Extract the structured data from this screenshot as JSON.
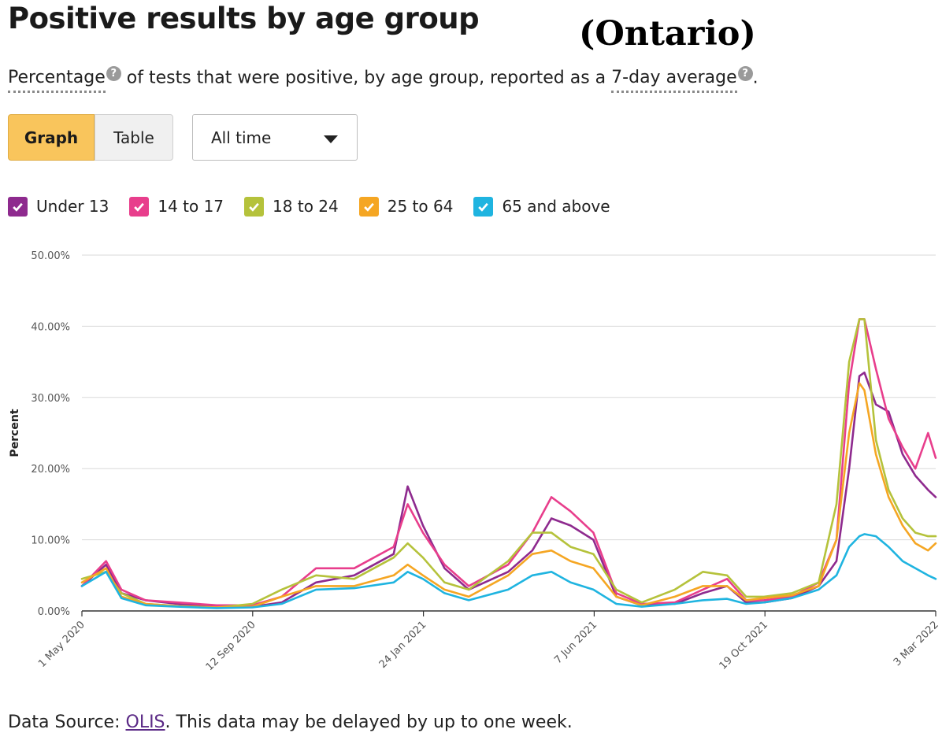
{
  "header": {
    "title": "Positive results by age group",
    "annotation": "(Ontario)"
  },
  "subtitle": {
    "term1": "Percentage",
    "middle": " of tests that were positive, by age group, reported as a ",
    "term2": "7-day average",
    "end": ".",
    "help_glyph": "?"
  },
  "controls": {
    "graph_label": "Graph",
    "table_label": "Table",
    "range_selected": "All time"
  },
  "legend": [
    {
      "label": "Under 13",
      "color": "#8e2a8e"
    },
    {
      "label": "14 to 17",
      "color": "#e83e8c"
    },
    {
      "label": "18 to 24",
      "color": "#b5c23b"
    },
    {
      "label": "25 to 64",
      "color": "#f5a623"
    },
    {
      "label": "65 and above",
      "color": "#1fb4e0"
    }
  ],
  "footer": {
    "prefix": "Data Source: ",
    "link": "OLIS",
    "suffix": ". This data may be delayed by up to one week."
  },
  "chart_data": {
    "type": "line",
    "ylabel": "Percent",
    "ylim": [
      0,
      50
    ],
    "yticks": [
      "0.00%",
      "10.00%",
      "20.00%",
      "30.00%",
      "40.00%",
      "50.00%"
    ],
    "xticks": [
      "1 May 2020",
      "12 Sep 2020",
      "24 Jan 2021",
      "7 Jun 2021",
      "19 Oct 2021",
      "3 Mar 2022"
    ],
    "x": [
      "2020-05-01",
      "2020-05-20",
      "2020-06-01",
      "2020-06-20",
      "2020-07-15",
      "2020-08-15",
      "2020-09-12",
      "2020-10-05",
      "2020-11-01",
      "2020-12-01",
      "2021-01-01",
      "2021-01-12",
      "2021-01-24",
      "2021-02-10",
      "2021-03-01",
      "2021-04-01",
      "2021-04-20",
      "2021-05-05",
      "2021-05-20",
      "2021-06-07",
      "2021-06-25",
      "2021-07-15",
      "2021-08-10",
      "2021-09-01",
      "2021-09-20",
      "2021-10-05",
      "2021-10-19",
      "2021-11-10",
      "2021-12-01",
      "2021-12-15",
      "2021-12-25",
      "2022-01-02",
      "2022-01-06",
      "2022-01-15",
      "2022-01-25",
      "2022-02-05",
      "2022-02-15",
      "2022-02-25",
      "2022-03-03"
    ],
    "series": [
      {
        "name": "Under 13",
        "color": "#8e2a8e",
        "values": [
          3.5,
          6.5,
          2.5,
          1.5,
          1.0,
          0.6,
          0.6,
          1.2,
          4.0,
          5.0,
          8.0,
          17.5,
          12.0,
          6.0,
          3.0,
          5.5,
          8.5,
          13.0,
          12.0,
          10.0,
          2.0,
          0.8,
          1.0,
          2.5,
          3.5,
          1.2,
          1.2,
          1.8,
          3.5,
          7.0,
          20.0,
          33.0,
          33.5,
          29.0,
          28.0,
          22.0,
          19.0,
          17.0,
          16.0
        ]
      },
      {
        "name": "14 to 17",
        "color": "#e83e8c",
        "values": [
          3.5,
          7.0,
          3.0,
          1.5,
          1.2,
          0.8,
          0.8,
          2.0,
          6.0,
          6.0,
          9.0,
          15.0,
          11.0,
          6.5,
          3.5,
          6.5,
          11.0,
          16.0,
          14.0,
          11.0,
          2.5,
          1.0,
          1.2,
          3.0,
          4.5,
          1.5,
          1.5,
          2.0,
          4.0,
          10.0,
          32.0,
          41.0,
          41.0,
          34.0,
          27.0,
          23.0,
          20.0,
          25.0,
          21.5
        ]
      },
      {
        "name": "18 to 24",
        "color": "#b5c23b",
        "values": [
          4.5,
          5.5,
          2.5,
          1.0,
          0.7,
          0.5,
          1.0,
          3.0,
          5.0,
          4.5,
          7.5,
          9.5,
          7.5,
          4.0,
          3.0,
          7.0,
          11.0,
          11.0,
          9.0,
          8.0,
          3.0,
          1.2,
          3.0,
          5.5,
          5.0,
          2.0,
          2.0,
          2.5,
          4.0,
          15.0,
          35.0,
          41.0,
          41.0,
          24.0,
          17.0,
          13.0,
          11.0,
          10.5,
          10.5
        ]
      },
      {
        "name": "25 to 64",
        "color": "#f5a623",
        "values": [
          4.0,
          6.0,
          2.0,
          1.0,
          0.7,
          0.5,
          0.6,
          2.0,
          3.5,
          3.5,
          5.0,
          6.5,
          5.0,
          3.0,
          2.0,
          5.0,
          8.0,
          8.5,
          7.0,
          6.0,
          2.0,
          0.8,
          2.0,
          3.5,
          3.5,
          1.5,
          1.8,
          2.2,
          3.5,
          10.0,
          25.0,
          32.0,
          31.0,
          22.0,
          16.0,
          12.0,
          9.5,
          8.5,
          9.5
        ]
      },
      {
        "name": "65 and above",
        "color": "#1fb4e0",
        "values": [
          3.5,
          5.5,
          1.8,
          0.8,
          0.6,
          0.4,
          0.5,
          1.0,
          3.0,
          3.2,
          4.0,
          5.5,
          4.5,
          2.5,
          1.5,
          3.0,
          5.0,
          5.5,
          4.0,
          3.0,
          1.0,
          0.6,
          1.0,
          1.5,
          1.7,
          1.0,
          1.2,
          1.8,
          3.0,
          5.0,
          9.0,
          10.5,
          10.8,
          10.5,
          9.0,
          7.0,
          6.0,
          5.0,
          4.5
        ]
      }
    ]
  }
}
